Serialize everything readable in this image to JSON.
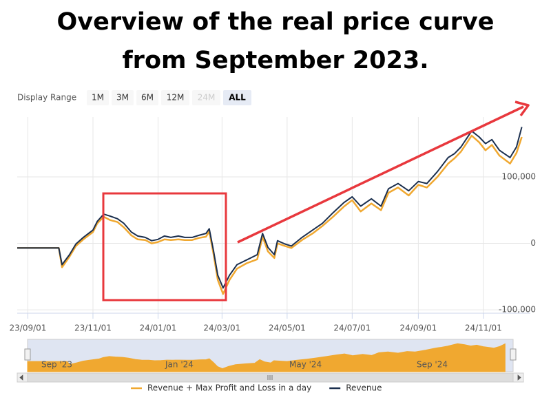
{
  "chart_data": {
    "type": "line",
    "title": "Overview of the real price curve from September 2023.",
    "range_selector": {
      "label": "Display Range",
      "buttons": [
        "1M",
        "3M",
        "6M",
        "12M",
        "24M",
        "ALL"
      ],
      "selected": "ALL",
      "disabled": [
        "24M"
      ]
    },
    "x": [
      "2023-08-22",
      "2023-09-30",
      "2023-10-03",
      "2023-10-10",
      "2023-10-16",
      "2023-10-23",
      "2023-11-01",
      "2023-11-05",
      "2023-11-11",
      "2023-11-17",
      "2023-11-24",
      "2023-11-30",
      "2023-12-07",
      "2023-12-13",
      "2023-12-20",
      "2023-12-26",
      "2024-01-01",
      "2024-01-07",
      "2024-01-13",
      "2024-01-20",
      "2024-01-26",
      "2024-02-02",
      "2024-02-08",
      "2024-02-15",
      "2024-02-18",
      "2024-02-22",
      "2024-02-26",
      "2024-03-02",
      "2024-03-08",
      "2024-03-15",
      "2024-03-24",
      "2024-04-03",
      "2024-04-08",
      "2024-04-13",
      "2024-04-19",
      "2024-04-22",
      "2024-04-29",
      "2024-05-05",
      "2024-05-15",
      "2024-05-25",
      "2024-06-03",
      "2024-06-13",
      "2024-06-23",
      "2024-07-01",
      "2024-07-09",
      "2024-07-19",
      "2024-07-28",
      "2024-08-04",
      "2024-08-13",
      "2024-08-23",
      "2024-09-01",
      "2024-09-09",
      "2024-09-19",
      "2024-09-29",
      "2024-10-05",
      "2024-10-11",
      "2024-10-21",
      "2024-10-28",
      "2024-11-03",
      "2024-11-09",
      "2024-11-16",
      "2024-11-26",
      "2024-12-02",
      "2024-12-07"
    ],
    "series": [
      {
        "name": "Revenue + Max Profit and Loss in a day",
        "color": "#f0a830",
        "values": [
          -7000,
          -7000,
          -36000,
          -20000,
          -4000,
          6000,
          17000,
          30000,
          40000,
          35000,
          32000,
          24000,
          12000,
          6000,
          5000,
          0,
          2000,
          6000,
          5000,
          6000,
          5000,
          5000,
          8000,
          10000,
          18000,
          -16000,
          -55000,
          -76000,
          -55000,
          -38000,
          -30000,
          -24000,
          10000,
          -12000,
          -22000,
          0,
          -4000,
          -7000,
          5000,
          15000,
          26000,
          40000,
          55000,
          65000,
          48000,
          60000,
          50000,
          76000,
          84000,
          72000,
          88000,
          84000,
          100000,
          120000,
          128000,
          138000,
          162000,
          152000,
          140000,
          148000,
          132000,
          120000,
          136000,
          160000
        ]
      },
      {
        "name": "Revenue",
        "color": "#1b2f4e",
        "values": [
          -7000,
          -7000,
          -32000,
          -17000,
          -1000,
          9000,
          20000,
          33000,
          44000,
          41000,
          37000,
          30000,
          17000,
          11000,
          9000,
          4000,
          6000,
          11000,
          9000,
          11000,
          9000,
          9000,
          12000,
          15000,
          22000,
          -11000,
          -48000,
          -67000,
          -48000,
          -32000,
          -25000,
          -17000,
          15000,
          -6000,
          -17000,
          4000,
          -1000,
          -4000,
          9000,
          20000,
          30000,
          46000,
          61000,
          70000,
          56000,
          67000,
          56000,
          82000,
          90000,
          79000,
          93000,
          90000,
          108000,
          129000,
          135000,
          145000,
          169000,
          160000,
          150000,
          156000,
          140000,
          129000,
          145000,
          175000
        ]
      }
    ],
    "xlim": [
      "2023-08-22",
      "2024-12-15"
    ],
    "xticks": [
      {
        "value": "2023-09-01",
        "label": "23/09/01"
      },
      {
        "value": "2023-11-01",
        "label": "23/11/01"
      },
      {
        "value": "2024-01-01",
        "label": "24/01/01"
      },
      {
        "value": "2024-03-01",
        "label": "24/03/01"
      },
      {
        "value": "2024-05-01",
        "label": "24/05/01"
      },
      {
        "value": "2024-07-01",
        "label": "24/07/01"
      },
      {
        "value": "2024-09-01",
        "label": "24/09/01"
      },
      {
        "value": "2024-11-01",
        "label": "24/11/01"
      }
    ],
    "ylim": [
      -105000,
      190000
    ],
    "yticks": [
      {
        "value": -100000,
        "label": "-100,000"
      },
      0,
      {
        "value": 100000,
        "label": "100,000"
      }
    ],
    "grid": true,
    "navigator_labels": [
      "Sep '23",
      "Jan '24",
      "May '24",
      "Sep '24"
    ],
    "legend": "bottom"
  }
}
